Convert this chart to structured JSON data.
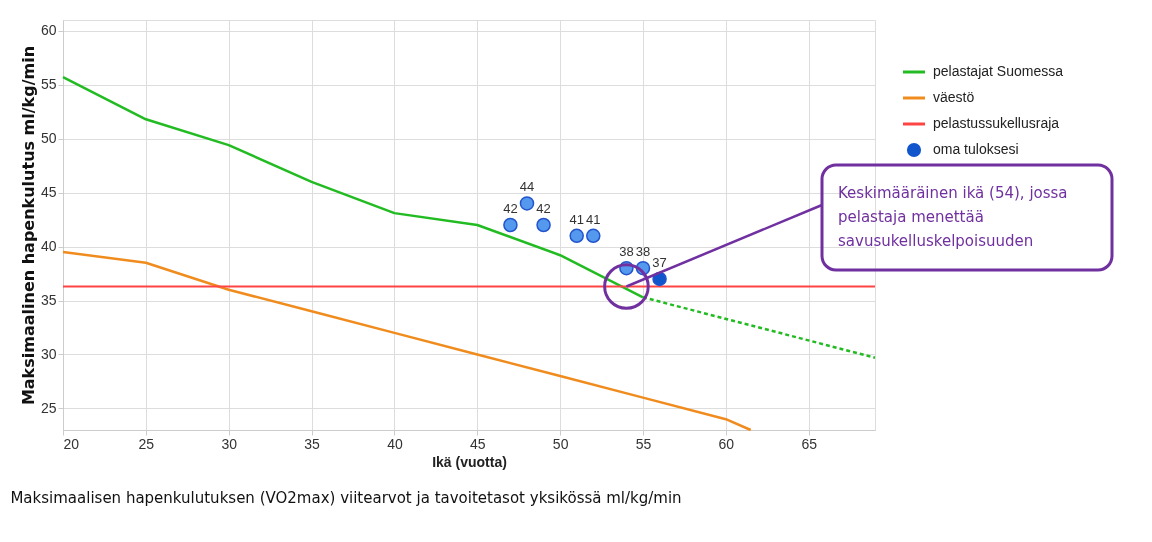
{
  "chart_data": {
    "type": "line",
    "xlabel": "Ikä (vuotta)",
    "ylabel": "Maksimaalinen hapenkulutus ml/kg/min",
    "xlim": [
      20,
      69
    ],
    "ylim": [
      23,
      61
    ],
    "xticks": [
      20,
      25,
      30,
      35,
      40,
      45,
      50,
      55,
      60,
      65
    ],
    "yticks": [
      25,
      30,
      35,
      40,
      45,
      50,
      55,
      60
    ],
    "grid": true,
    "legend": "right",
    "series": [
      {
        "name": "pelastajat Suomessa",
        "color": "#22bb22",
        "line_style": "solid",
        "x": [
          20,
          25,
          30,
          35,
          40,
          45,
          50,
          55
        ],
        "values": [
          55.7,
          51.8,
          49.4,
          46,
          43.1,
          42,
          39.2,
          35.3
        ]
      },
      {
        "color": "#22bb22",
        "line_style": "dashed",
        "x": [
          55,
          69
        ],
        "values": [
          35.3,
          29.7
        ]
      },
      {
        "name": "väestö",
        "color": "#f08c1e",
        "line_style": "solid",
        "x": [
          20,
          25,
          30,
          35,
          40,
          45,
          50,
          55,
          60,
          61.5
        ],
        "values": [
          39.5,
          38.5,
          36,
          34,
          32,
          30,
          28,
          26,
          24,
          23
        ]
      },
      {
        "name": "oma tuloksesi",
        "type": "scatter",
        "color": "#1155cc",
        "colors": [
          "#5599ee",
          "#5599ee",
          "#5599ee",
          "#5599ee",
          "#5599ee",
          "#5599ee",
          "#5599ee",
          "#1155cc"
        ],
        "x": [
          47,
          48,
          49,
          51,
          52,
          54,
          55,
          56
        ],
        "values": [
          42,
          44,
          42,
          41,
          41,
          38,
          38,
          37
        ],
        "value_labels": [
          "42",
          "44",
          "42",
          "41",
          "41",
          "38",
          "38",
          "37"
        ]
      }
    ],
    "ref_lines": [
      {
        "axis": "y",
        "value": 36.3,
        "label": "pelastussukellusraja",
        "color": "#ff4444"
      }
    ],
    "annotations": [
      {
        "text": "Keskimääräinen ikä (54), jossa pelastaja menettää savusukelluskelpoisuuden",
        "x": 54,
        "y": 36.3
      },
      "Maksimaalisen hapenkulutuksen (VO2max) viitearvot ja tavoitetasot yksikössä ml/kg/min"
    ]
  }
}
